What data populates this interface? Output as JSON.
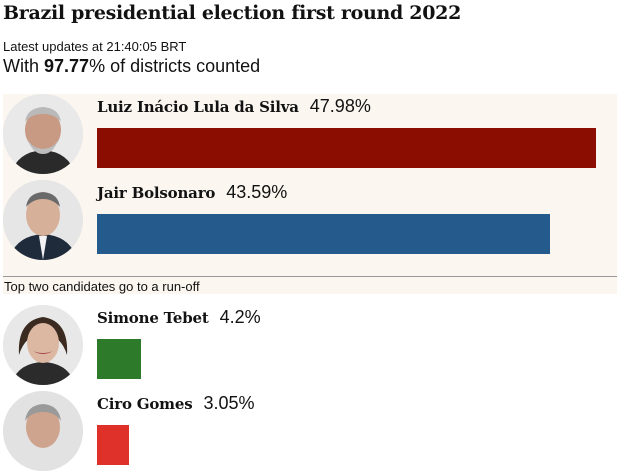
{
  "header": {
    "title": "Brazil presidential election first round 2022",
    "updated": "Latest updates at 21:40:05 BRT",
    "counted_prefix": "With ",
    "counted_value": "97.77",
    "counted_suffix": "% of districts counted"
  },
  "runoff_note": "Top two candidates go to a run-off",
  "chart_data": {
    "type": "bar",
    "categories": [
      "Luiz Inácio Lula da Silva",
      "Jair Bolsonaro",
      "Simone Tebet",
      "Ciro Gomes"
    ],
    "values": [
      47.98,
      43.59,
      4.2,
      3.05
    ],
    "labels": [
      "47.98%",
      "43.59%",
      "4.2%",
      "3.05%"
    ],
    "colors": [
      "#8b0c00",
      "#245a8c",
      "#2d7a2a",
      "#e0302a"
    ],
    "xlim": [
      0,
      50
    ]
  }
}
